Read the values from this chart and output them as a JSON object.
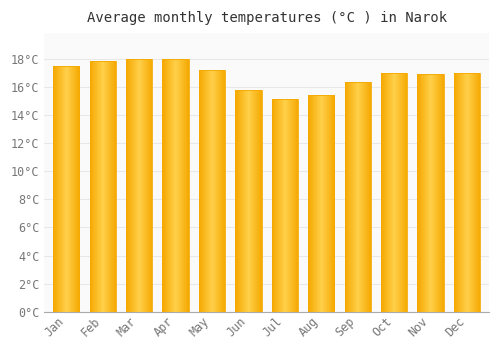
{
  "title": "Average monthly temperatures (°C ) in Narok",
  "months": [
    "Jan",
    "Feb",
    "Mar",
    "Apr",
    "May",
    "Jun",
    "Jul",
    "Aug",
    "Sep",
    "Oct",
    "Nov",
    "Dec"
  ],
  "values": [
    17.5,
    17.8,
    18.0,
    18.0,
    17.2,
    15.8,
    15.1,
    15.4,
    16.3,
    17.0,
    16.9,
    17.0
  ],
  "bar_color_center": "#FFD04A",
  "bar_color_edge": "#F5A800",
  "background_color": "#FFFFFF",
  "plot_bg_color": "#FAFAFA",
  "grid_color": "#E8E8E8",
  "yticks": [
    0,
    2,
    4,
    6,
    8,
    10,
    12,
    14,
    16,
    18
  ],
  "ylim": [
    0,
    19.8
  ],
  "title_fontsize": 10,
  "tick_fontsize": 8.5,
  "font_family": "monospace"
}
